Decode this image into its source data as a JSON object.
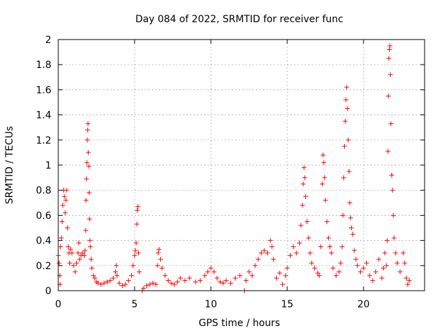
{
  "chart_data": {
    "type": "scatter",
    "title": "Day 084 of 2022, SRMTID for receiver func",
    "xlabel": "GPS time / hours",
    "ylabel": "SRMTID / TECUs",
    "xlim": [
      0,
      24
    ],
    "ylim": [
      0,
      2
    ],
    "xticks": [
      0,
      5,
      10,
      15,
      20
    ],
    "xtick_labels": [
      "0",
      "5",
      "10",
      "15",
      "20"
    ],
    "yticks": [
      0,
      0.2,
      0.4,
      0.6,
      0.8,
      1,
      1.2,
      1.4,
      1.6,
      1.8,
      2
    ],
    "ytick_labels": [
      "0",
      "0.2",
      "0.4",
      "0.6",
      "0.8",
      "1",
      "1.2",
      "1.4",
      "1.6",
      "1.8",
      "2"
    ],
    "grid": true,
    "marker": "+",
    "color": "#ff0000",
    "series": [
      {
        "name": "SRMTID",
        "points": [
          [
            0.0,
            0.28
          ],
          [
            0.05,
            0.22
          ],
          [
            0.1,
            0.12
          ],
          [
            0.12,
            0.05
          ],
          [
            0.15,
            0.35
          ],
          [
            0.2,
            0.42
          ],
          [
            0.25,
            0.55
          ],
          [
            0.3,
            0.68
          ],
          [
            0.35,
            0.8
          ],
          [
            0.4,
            0.75
          ],
          [
            0.45,
            0.62
          ],
          [
            0.5,
            0.72
          ],
          [
            0.55,
            0.8
          ],
          [
            0.6,
            0.5
          ],
          [
            0.65,
            0.35
          ],
          [
            0.7,
            0.3
          ],
          [
            0.75,
            0.22
          ],
          [
            0.8,
            0.33
          ],
          [
            0.9,
            0.3
          ],
          [
            1.0,
            0.2
          ],
          [
            1.1,
            0.15
          ],
          [
            1.2,
            0.22
          ],
          [
            1.3,
            0.3
          ],
          [
            1.35,
            0.38
          ],
          [
            1.4,
            0.25
          ],
          [
            1.5,
            0.28
          ],
          [
            1.6,
            0.3
          ],
          [
            1.7,
            0.28
          ],
          [
            1.75,
            0.32
          ],
          [
            1.8,
            0.48
          ],
          [
            1.82,
            0.72
          ],
          [
            1.85,
            0.89
          ],
          [
            1.87,
            1.02
          ],
          [
            1.9,
            1.2
          ],
          [
            1.92,
            1.28
          ],
          [
            1.95,
            1.33
          ],
          [
            1.97,
            1.1
          ],
          [
            2.0,
            0.99
          ],
          [
            2.02,
            0.78
          ],
          [
            2.05,
            0.57
          ],
          [
            2.08,
            0.4
          ],
          [
            2.1,
            0.35
          ],
          [
            2.15,
            0.25
          ],
          [
            2.2,
            0.18
          ],
          [
            2.3,
            0.12
          ],
          [
            2.4,
            0.1
          ],
          [
            2.5,
            0.07
          ],
          [
            2.6,
            0.06
          ],
          [
            2.8,
            0.05
          ],
          [
            3.0,
            0.06
          ],
          [
            3.2,
            0.07
          ],
          [
            3.4,
            0.08
          ],
          [
            3.6,
            0.1
          ],
          [
            3.75,
            0.15
          ],
          [
            3.8,
            0.2
          ],
          [
            3.85,
            0.12
          ],
          [
            4.0,
            0.06
          ],
          [
            4.2,
            0.04
          ],
          [
            4.4,
            0.05
          ],
          [
            4.6,
            0.08
          ],
          [
            4.8,
            0.12
          ],
          [
            4.9,
            0.2
          ],
          [
            5.0,
            0.28
          ],
          [
            5.05,
            0.32
          ],
          [
            5.1,
            0.38
          ],
          [
            5.15,
            0.53
          ],
          [
            5.18,
            0.64
          ],
          [
            5.22,
            0.67
          ],
          [
            5.25,
            0.3
          ],
          [
            5.3,
            0.15
          ],
          [
            5.5,
            0.0
          ],
          [
            5.6,
            0.02
          ],
          [
            5.8,
            0.04
          ],
          [
            6.0,
            0.05
          ],
          [
            6.2,
            0.06
          ],
          [
            6.4,
            0.05
          ],
          [
            6.5,
            0.2
          ],
          [
            6.55,
            0.3
          ],
          [
            6.6,
            0.33
          ],
          [
            6.7,
            0.25
          ],
          [
            6.8,
            0.18
          ],
          [
            7.0,
            0.12
          ],
          [
            7.2,
            0.08
          ],
          [
            7.4,
            0.06
          ],
          [
            7.6,
            0.05
          ],
          [
            7.8,
            0.07
          ],
          [
            8.0,
            0.1
          ],
          [
            8.3,
            0.08
          ],
          [
            8.6,
            0.1
          ],
          [
            9.0,
            0.07
          ],
          [
            9.3,
            0.08
          ],
          [
            9.6,
            0.12
          ],
          [
            9.8,
            0.15
          ],
          [
            10.0,
            0.18
          ],
          [
            10.2,
            0.15
          ],
          [
            10.4,
            0.1
          ],
          [
            10.6,
            0.07
          ],
          [
            10.8,
            0.06
          ],
          [
            11.0,
            0.08
          ],
          [
            11.3,
            0.06
          ],
          [
            11.6,
            0.1
          ],
          [
            11.9,
            0.12
          ],
          [
            12.2,
            0.0
          ],
          [
            12.3,
            0.08
          ],
          [
            12.5,
            0.15
          ],
          [
            12.7,
            0.12
          ],
          [
            12.9,
            0.2
          ],
          [
            13.1,
            0.25
          ],
          [
            13.3,
            0.3
          ],
          [
            13.5,
            0.32
          ],
          [
            13.7,
            0.3
          ],
          [
            13.9,
            0.4
          ],
          [
            14.0,
            0.35
          ],
          [
            14.1,
            0.25
          ],
          [
            14.3,
            0.1
          ],
          [
            14.5,
            0.14
          ],
          [
            14.7,
            0.05
          ],
          [
            14.9,
            0.12
          ],
          [
            15.0,
            0.18
          ],
          [
            15.2,
            0.28
          ],
          [
            15.4,
            0.35
          ],
          [
            15.6,
            0.3
          ],
          [
            15.8,
            0.38
          ],
          [
            15.9,
            0.52
          ],
          [
            16.0,
            0.68
          ],
          [
            16.05,
            0.85
          ],
          [
            16.1,
            0.98
          ],
          [
            16.15,
            0.9
          ],
          [
            16.2,
            0.75
          ],
          [
            16.3,
            0.55
          ],
          [
            16.4,
            0.42
          ],
          [
            16.5,
            0.3
          ],
          [
            16.6,
            0.22
          ],
          [
            16.8,
            0.18
          ],
          [
            17.0,
            0.14
          ],
          [
            17.1,
            0.12
          ],
          [
            17.2,
            0.35
          ],
          [
            17.3,
            0.85
          ],
          [
            17.35,
            1.08
          ],
          [
            17.4,
            1.02
          ],
          [
            17.45,
            0.9
          ],
          [
            17.5,
            0.72
          ],
          [
            17.6,
            0.55
          ],
          [
            17.7,
            0.42
          ],
          [
            17.8,
            0.35
          ],
          [
            17.9,
            0.3
          ],
          [
            18.0,
            0.18
          ],
          [
            18.2,
            0.12
          ],
          [
            18.4,
            0.15
          ],
          [
            18.5,
            0.22
          ],
          [
            18.6,
            0.35
          ],
          [
            18.65,
            0.6
          ],
          [
            18.7,
            0.9
          ],
          [
            18.75,
            1.15
          ],
          [
            18.8,
            1.35
          ],
          [
            18.85,
            1.52
          ],
          [
            18.9,
            1.62
          ],
          [
            18.95,
            1.45
          ],
          [
            19.0,
            1.2
          ],
          [
            19.05,
            0.95
          ],
          [
            19.1,
            0.7
          ],
          [
            19.15,
            0.58
          ],
          [
            19.2,
            0.5
          ],
          [
            19.3,
            0.45
          ],
          [
            19.4,
            0.32
          ],
          [
            19.5,
            0.25
          ],
          [
            19.6,
            0.2
          ],
          [
            19.8,
            0.15
          ],
          [
            20.0,
            0.18
          ],
          [
            20.2,
            0.22
          ],
          [
            20.4,
            0.12
          ],
          [
            20.6,
            0.08
          ],
          [
            20.8,
            0.15
          ],
          [
            21.0,
            0.25
          ],
          [
            21.2,
            0.1
          ],
          [
            21.3,
            0.18
          ],
          [
            21.4,
            0.3
          ],
          [
            21.5,
            0.2
          ],
          [
            21.55,
            0.4
          ],
          [
            21.6,
            1.11
          ],
          [
            21.63,
            1.55
          ],
          [
            21.66,
            1.85
          ],
          [
            21.7,
            1.92
          ],
          [
            21.73,
            1.95
          ],
          [
            21.76,
            1.72
          ],
          [
            21.8,
            1.33
          ],
          [
            21.85,
            0.92
          ],
          [
            21.9,
            0.8
          ],
          [
            21.95,
            0.6
          ],
          [
            22.0,
            0.42
          ],
          [
            22.1,
            0.3
          ],
          [
            22.2,
            0.22
          ],
          [
            22.4,
            0.15
          ],
          [
            22.6,
            0.3
          ],
          [
            22.7,
            0.22
          ],
          [
            22.8,
            0.1
          ],
          [
            22.9,
            0.05
          ],
          [
            23.0,
            0.08
          ]
        ]
      }
    ]
  }
}
